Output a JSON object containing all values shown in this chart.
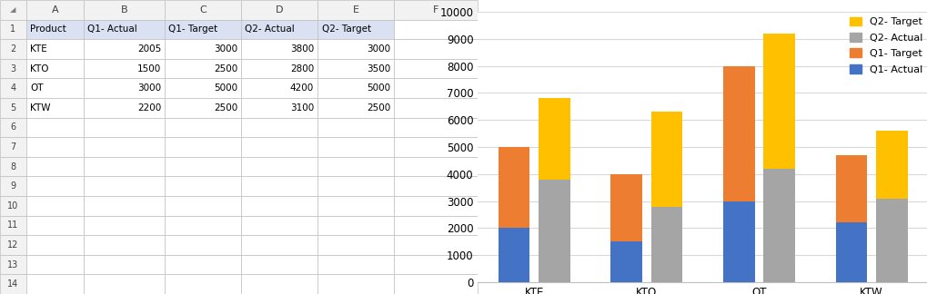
{
  "categories": [
    "KTE",
    "KTO",
    "OT",
    "KTW"
  ],
  "q1_actual": [
    2005,
    1500,
    3000,
    2200
  ],
  "q1_target": [
    3000,
    2500,
    5000,
    2500
  ],
  "q2_actual": [
    3800,
    2800,
    4200,
    3100
  ],
  "q2_target": [
    3000,
    3500,
    5000,
    2500
  ],
  "color_q1_actual": "#4472C4",
  "color_q1_target": "#ED7D31",
  "color_q2_actual": "#A5A5A5",
  "color_q2_target": "#FFC000",
  "ylim": [
    0,
    10000
  ],
  "yticks": [
    0,
    1000,
    2000,
    3000,
    4000,
    5000,
    6000,
    7000,
    8000,
    9000,
    10000
  ],
  "col_headers": [
    "Product",
    "Q1- Actual",
    "Q1- Target",
    "Q2- Actual",
    "Q2- Target"
  ],
  "table_data": [
    [
      "KTE",
      "2005",
      "3000",
      "3800",
      "3000"
    ],
    [
      "KTO",
      "1500",
      "2500",
      "2800",
      "3500"
    ],
    [
      "OT",
      "3000",
      "5000",
      "4200",
      "5000"
    ],
    [
      "KTW",
      "2200",
      "2500",
      "3100",
      "2500"
    ]
  ],
  "col_letters": [
    "",
    "A",
    "B",
    "C",
    "D",
    "E",
    "F"
  ],
  "row_numbers": [
    "1",
    "2",
    "3",
    "4",
    "5",
    "6",
    "7",
    "8",
    "9",
    "10",
    "11",
    "12",
    "13",
    "14"
  ],
  "excel_bg": "#FFFFFF",
  "header_bg": "#D9E1F2",
  "grid_color": "#BFBFBF",
  "col_header_bg": "#F2F2F2",
  "row_header_bg": "#F2F2F2",
  "bar_width": 0.28,
  "chart_bg": "#FFFFFF"
}
